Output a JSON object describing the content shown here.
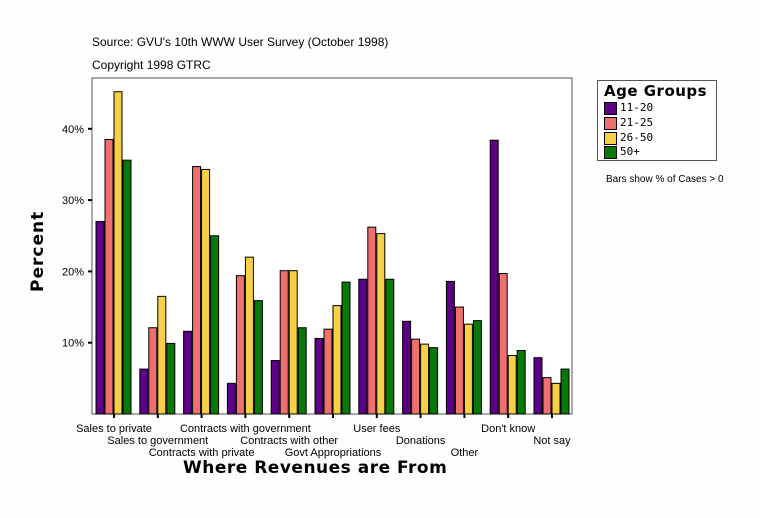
{
  "header": {
    "source": "Source: GVU's 10th WWW User Survey (October 1998)",
    "copyright": "Copyright 1998 GTRC"
  },
  "note": "Bars show % of Cases > 0",
  "chart_data": {
    "type": "bar",
    "xlabel": "Where Revenues are From",
    "ylabel": "Percent",
    "ylim": [
      0,
      48
    ],
    "yticks": [
      10,
      20,
      30,
      40
    ],
    "ytick_labels": [
      "10%",
      "20%",
      "30%",
      "40%"
    ],
    "grid": false,
    "legend_title": "Age Groups",
    "legend_position": "right",
    "categories": [
      "Sales to private",
      "Sales to government",
      "Contracts with private",
      "Contracts with government",
      "Contracts with other",
      "Govt Appropriations",
      "User fees",
      "Donations",
      "Other",
      "Don't know",
      "Not say"
    ],
    "series": [
      {
        "name": "11-20",
        "color": "#5c0088",
        "values": [
          27.0,
          6.3,
          11.6,
          4.3,
          7.5,
          10.6,
          18.9,
          13.0,
          18.6,
          38.4,
          7.9
        ]
      },
      {
        "name": "21-25",
        "color": "#f07070",
        "values": [
          38.5,
          12.1,
          34.7,
          19.4,
          20.1,
          11.9,
          26.2,
          10.5,
          15.0,
          19.7,
          5.1
        ]
      },
      {
        "name": "26-50",
        "color": "#f8d048",
        "values": [
          45.2,
          16.5,
          34.3,
          22.0,
          20.1,
          15.2,
          25.3,
          9.8,
          12.6,
          8.2,
          4.3
        ]
      },
      {
        "name": "50+",
        "color": "#087808",
        "values": [
          35.6,
          9.9,
          25.0,
          15.9,
          12.1,
          18.5,
          18.9,
          9.3,
          13.1,
          8.9,
          6.3
        ]
      }
    ]
  }
}
